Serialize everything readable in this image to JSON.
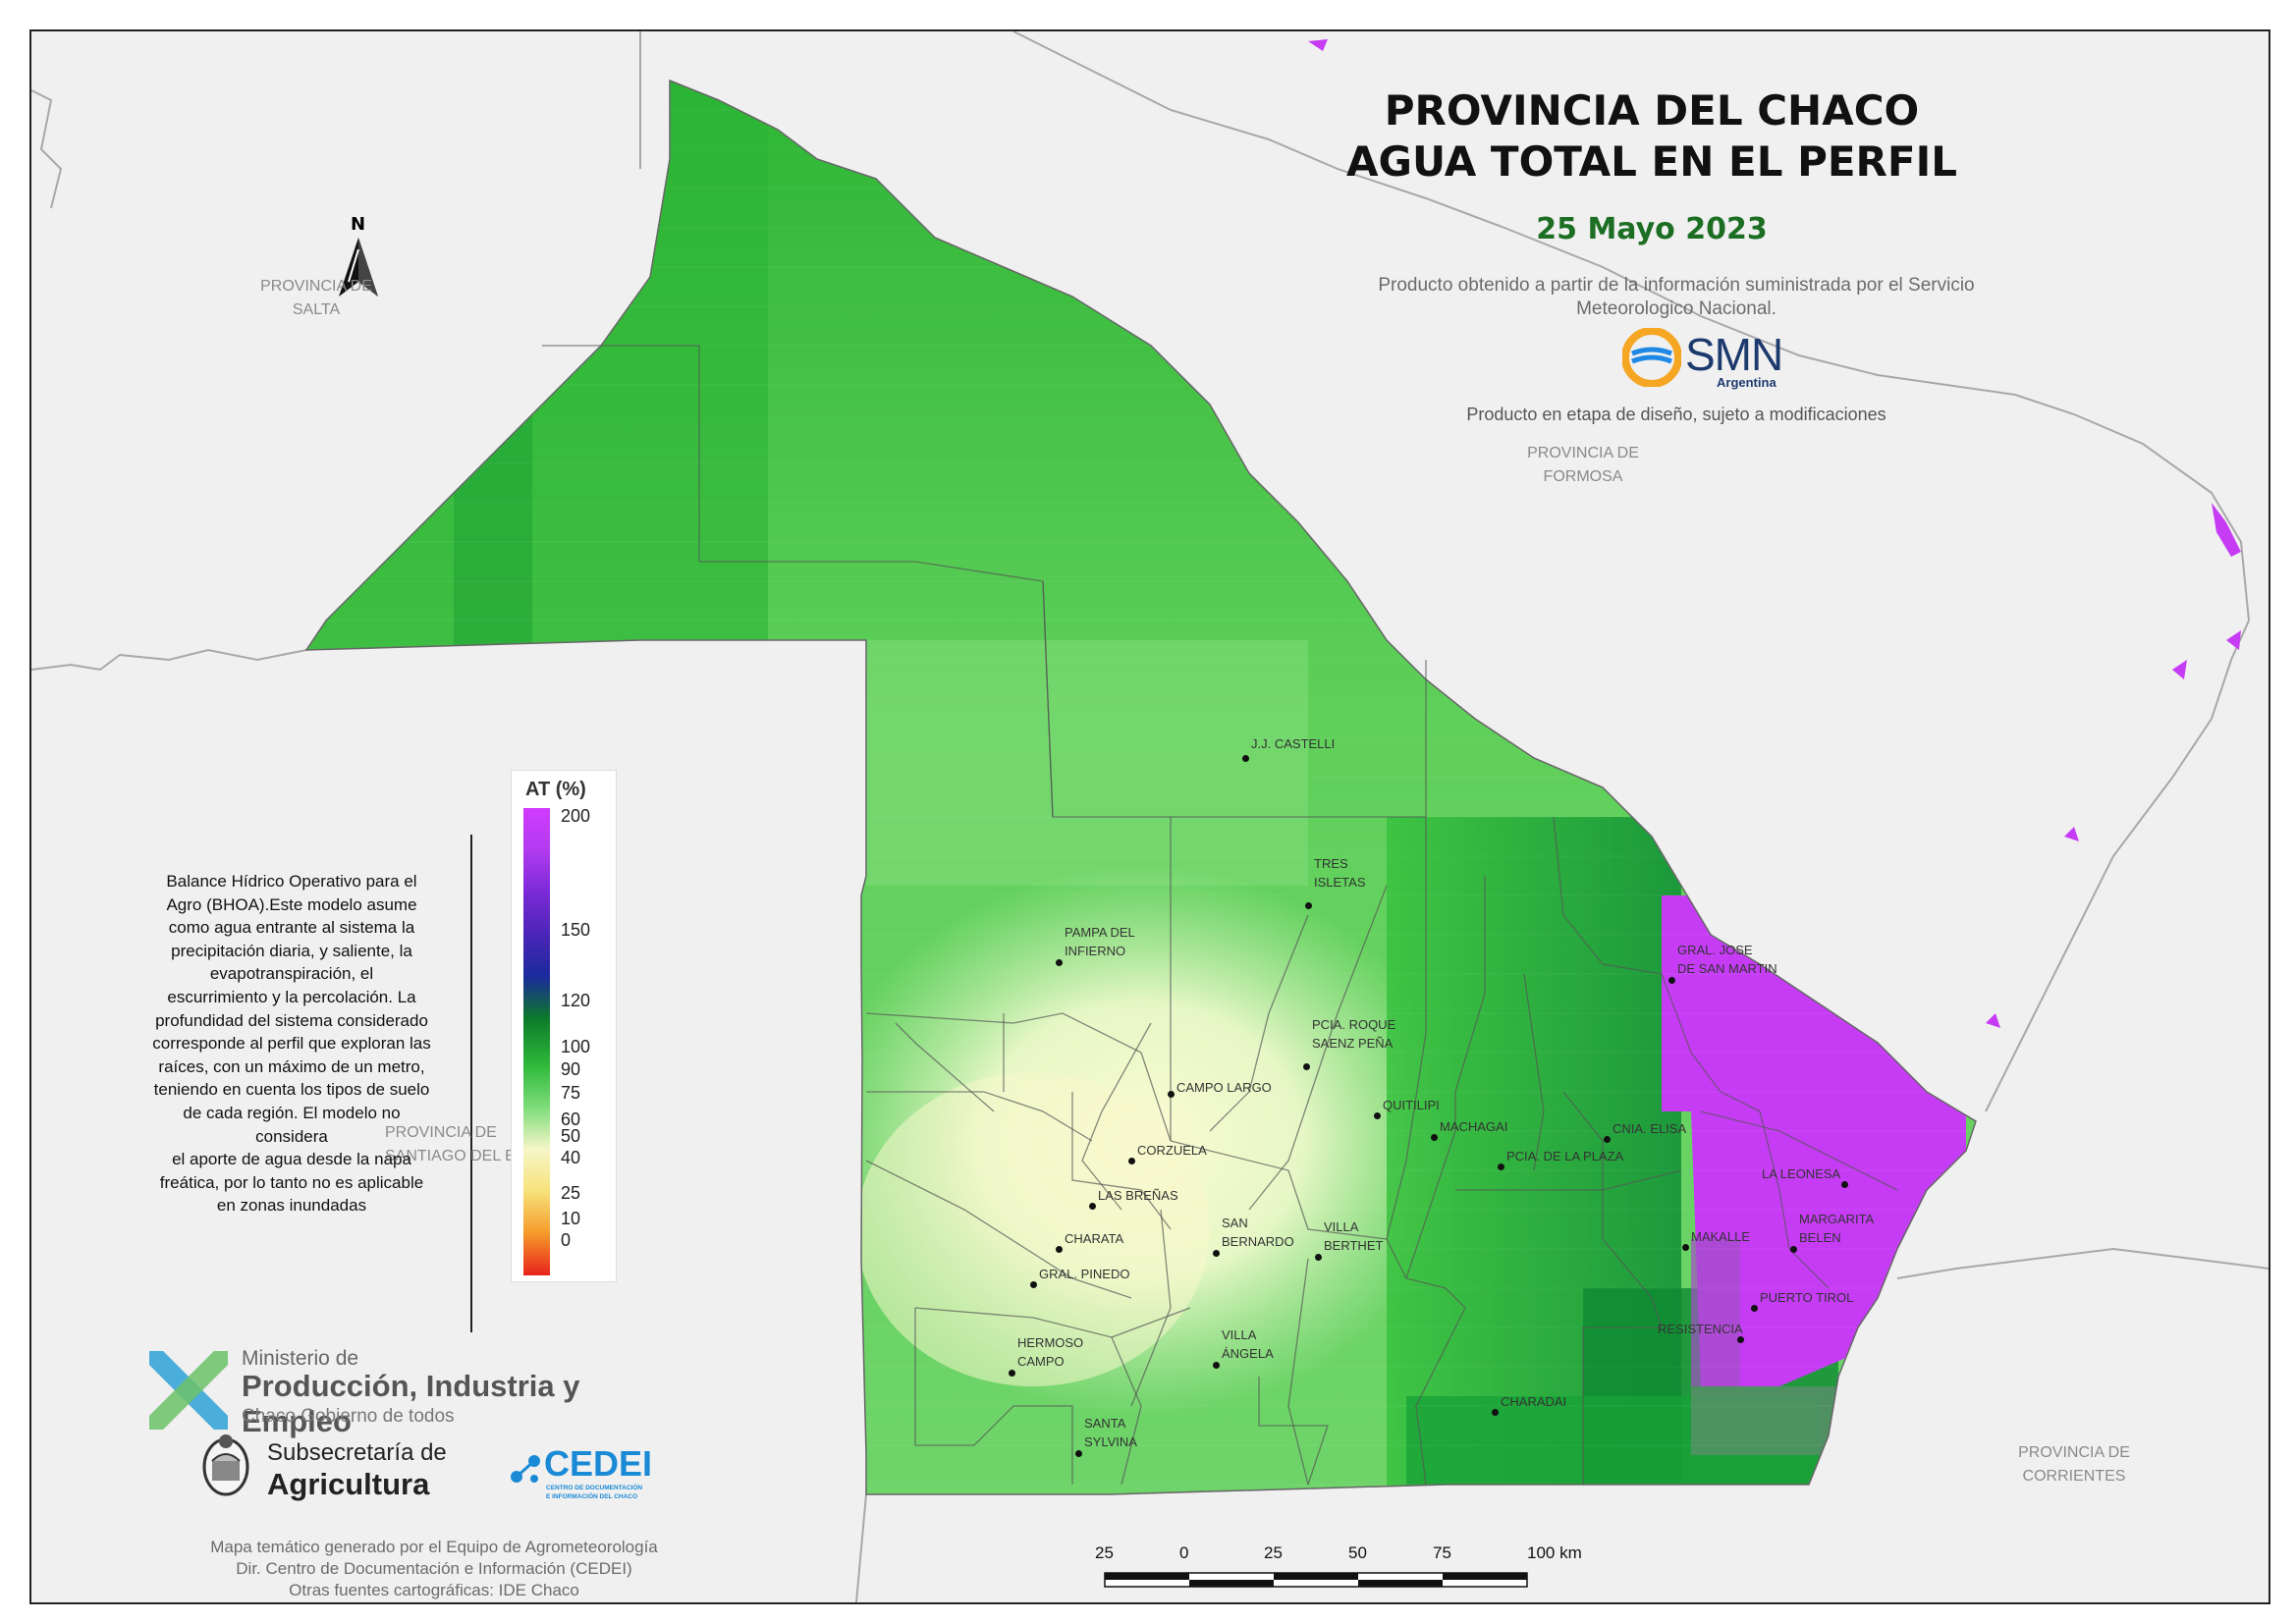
{
  "title": {
    "line1": "PROVINCIA DEL CHACO",
    "line2": "AGUA TOTAL EN EL PERFIL",
    "date": "25 Mayo 2023",
    "source_line1": "Producto obtenido a partir de la información suministrada por el Servicio",
    "source_line2": "Meteorologico Nacional.",
    "disclaimer": "Producto en etapa de diseño, sujeto a modificaciones"
  },
  "smn_logo": {
    "text": "SMN",
    "subtext": "Argentina",
    "colors": [
      "#f5a623",
      "#1e88e5"
    ]
  },
  "north_arrow": {
    "label": "N"
  },
  "provinces": {
    "salta": [
      "PROVINCIA DE",
      "SALTA"
    ],
    "formosa": [
      "PROVINCIA DE",
      "FORMOSA"
    ],
    "santiago": [
      "PROVINCIA DE",
      "SANTIAGO DEL ESTERO"
    ],
    "corrientes": [
      "PROVINCIA DE",
      "CORRIENTES"
    ]
  },
  "towns": [
    {
      "name": "J.J. CASTELLI",
      "lines": [
        "J.J. CASTELLI"
      ]
    },
    {
      "name": "TRES ISLETAS",
      "lines": [
        "TRES",
        "ISLETAS"
      ]
    },
    {
      "name": "PAMPA DEL INFIERNO",
      "lines": [
        "PAMPA DEL",
        "INFIERNO"
      ]
    },
    {
      "name": "GRAL. JOSE DE SAN MARTIN",
      "lines": [
        "GRAL. JOSE",
        "DE SAN MARTIN"
      ]
    },
    {
      "name": "CAMPO LARGO",
      "lines": [
        "CAMPO LARGO"
      ]
    },
    {
      "name": "PCIA. ROQUE SAENZ PEÑA",
      "lines": [
        "PCIA. ROQUE",
        "SAENZ PEÑA"
      ]
    },
    {
      "name": "QUITILIPI",
      "lines": [
        "QUITILIPI"
      ]
    },
    {
      "name": "MACHAGAI",
      "lines": [
        "MACHAGAI"
      ]
    },
    {
      "name": "CNIA. ELISA",
      "lines": [
        "CNIA. ELISA"
      ]
    },
    {
      "name": "CORZUELA",
      "lines": [
        "CORZUELA"
      ]
    },
    {
      "name": "PCIA. DE LA PLAZA",
      "lines": [
        "PCIA. DE LA PLAZA"
      ]
    },
    {
      "name": "LA LEONESA",
      "lines": [
        "LA LEONESA"
      ]
    },
    {
      "name": "LAS BREÑAS",
      "lines": [
        "LAS BREÑAS"
      ]
    },
    {
      "name": "CHARATA",
      "lines": [
        "CHARATA"
      ]
    },
    {
      "name": "SAN BERNARDO",
      "lines": [
        "SAN",
        "BERNARDO"
      ]
    },
    {
      "name": "VILLA BERTHET",
      "lines": [
        "VILLA",
        "BERTHET"
      ]
    },
    {
      "name": "MAKALLE",
      "lines": [
        "MAKALLE"
      ]
    },
    {
      "name": "MARGARITA BELEN",
      "lines": [
        "MARGARITA",
        "BELEN"
      ]
    },
    {
      "name": "GRAL. PINEDO",
      "lines": [
        "GRAL. PINEDO"
      ]
    },
    {
      "name": "PUERTO TIROL",
      "lines": [
        "PUERTO TIROL"
      ]
    },
    {
      "name": "RESISTENCIA",
      "lines": [
        "RESISTENCIA"
      ]
    },
    {
      "name": "HERMOSO CAMPO",
      "lines": [
        "HERMOSO",
        "CAMPO"
      ]
    },
    {
      "name": "VILLA ÁNGELA",
      "lines": [
        "VILLA",
        "ÁNGELA"
      ]
    },
    {
      "name": "CHARADAI",
      "lines": [
        "CHARADAI"
      ]
    },
    {
      "name": "SANTA SYLVINA",
      "lines": [
        "SANTA",
        "SYLVINA"
      ]
    }
  ],
  "legend": {
    "title": "AT (%)",
    "ticks": [
      "200",
      "150",
      "120",
      "100",
      "90",
      "75",
      "60",
      "50",
      "40",
      "25",
      "10",
      "0"
    ],
    "colors": [
      "#d13bff",
      "#b23bf0",
      "#7b2ad6",
      "#4b25b8",
      "#1a2a9c",
      "#0d7a2a",
      "#2fb83a",
      "#7ddc7a",
      "#f6f6c8",
      "#f7e27a",
      "#f59a2a",
      "#e8221c"
    ]
  },
  "description": {
    "lines": [
      "Balance Hídrico Operativo para el",
      "Agro (BHOA).Este modelo asume",
      "como agua entrante al sistema la",
      "precipitación diaria, y saliente, la",
      "evapotranspiración, el",
      "escurrimiento y la percolación. La",
      "profundidad del sistema considerado",
      "corresponde al perfil que exploran las",
      "raíces, con un máximo de un metro,",
      "teniendo en cuenta los tipos de suelo",
      "de cada región. El modelo no",
      "considera",
      "el aporte de agua desde la napa",
      "freática, por lo tanto no es aplicable",
      "en zonas inundadas"
    ]
  },
  "logos": {
    "ministerio_line1": "Ministerio de",
    "ministerio_line2": "Producción, Industria y Empleo",
    "ministerio_line3": "Chaco Gobierno de todos",
    "subsecretaria_line1": "Subsecretaría de",
    "subsecretaria_line2": "Agricultura",
    "cedei": "CEDEI",
    "cedei_sub1": "CENTRO DE DOCUMENTACIÓN",
    "cedei_sub2": "E INFORMACIÓN DEL CHACO"
  },
  "credits": {
    "line1": "Mapa temático generado por el Equipo de Agrometeorología",
    "line2": "Dir. Centro de Documentación e Información (CEDEI)",
    "line3": "Otras fuentes cartográficas: IDE Chaco"
  },
  "scale_bar": {
    "labels": [
      "25",
      "0",
      "25",
      "50",
      "75",
      "100 km"
    ]
  }
}
